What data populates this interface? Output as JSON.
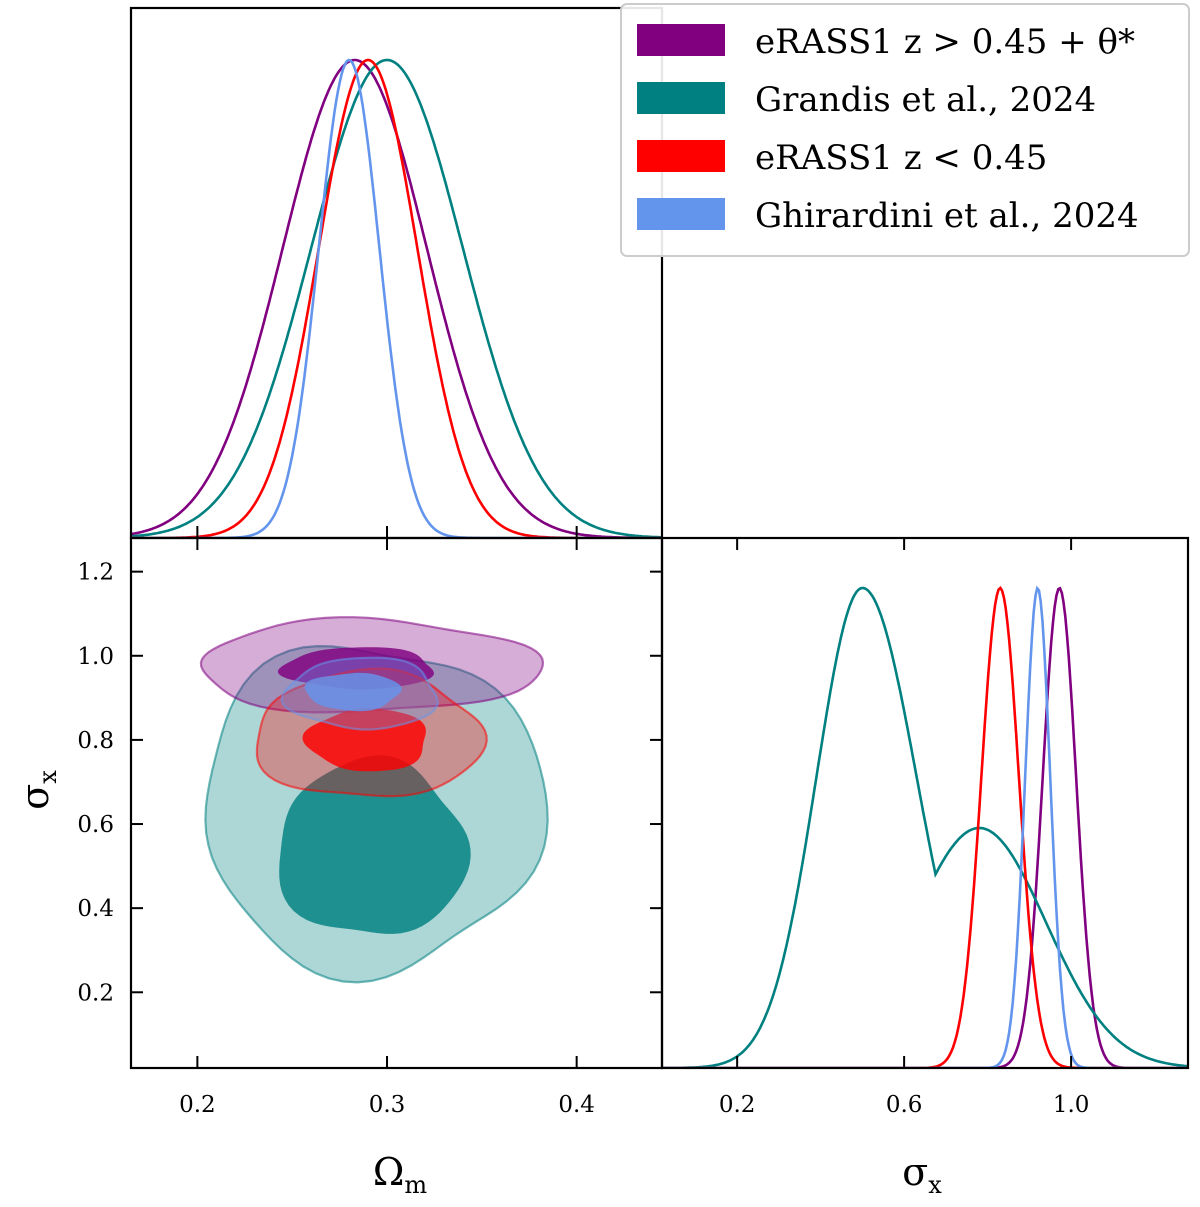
{
  "chart_data": {
    "type": "triangle-corner-plot",
    "parameters": [
      {
        "key": "omega_m",
        "label": "Ω",
        "label_sub": "m"
      },
      {
        "key": "sigma_x",
        "label": "σ",
        "label_sub": "x"
      }
    ],
    "series": [
      {
        "name": "eRASS1 z > 0.45 + θ*",
        "color": "#800080",
        "omega_m": {
          "mean": 0.283,
          "sd": 0.038
        },
        "sigma_x": {
          "mean": 0.972,
          "sd": 0.04
        },
        "contour_68": {
          "center": [
            0.285,
            0.97
          ],
          "half_width": [
            0.04,
            0.05
          ]
        },
        "contour_95": {
          "center": [
            0.29,
            0.975
          ],
          "half_width": [
            0.09,
            0.11
          ]
        }
      },
      {
        "name": "Grandis et al., 2024",
        "color": "#008080",
        "omega_m": {
          "mean": 0.3,
          "sd": 0.04
        },
        "sigma_x": {
          "mean": 0.5,
          "sd": 0.12
        },
        "contour_68": {
          "center": [
            0.292,
            0.54
          ],
          "half_width": [
            0.05,
            0.21
          ]
        },
        "contour_95": {
          "center": [
            0.292,
            0.64
          ],
          "half_width": [
            0.09,
            0.39
          ]
        }
      },
      {
        "name": "eRASS1 z < 0.45",
        "color": "#ff0000",
        "omega_m": {
          "mean": 0.29,
          "sd": 0.026
        },
        "sigma_x": {
          "mean": 0.83,
          "sd": 0.045
        },
        "contour_68": {
          "center": [
            0.29,
            0.8
          ],
          "half_width": [
            0.032,
            0.075
          ]
        },
        "contour_95": {
          "center": [
            0.29,
            0.81
          ],
          "half_width": [
            0.06,
            0.15
          ]
        }
      },
      {
        "name": "Ghirardini et al., 2024",
        "color": "#6495ed",
        "omega_m": {
          "mean": 0.28,
          "sd": 0.016
        },
        "sigma_x": {
          "mean": 0.92,
          "sd": 0.03
        },
        "contour_68": {
          "center": [
            0.282,
            0.915
          ],
          "half_width": [
            0.025,
            0.045
          ]
        },
        "contour_95": {
          "center": [
            0.287,
            0.91
          ],
          "half_width": [
            0.04,
            0.085
          ]
        }
      }
    ],
    "axes": {
      "omega_m": {
        "range": [
          0.165,
          0.445
        ],
        "ticks": [
          0.2,
          0.3,
          0.4
        ],
        "tick_labels": [
          "0.2",
          "0.3",
          "0.4"
        ]
      },
      "sigma_x_vertical": {
        "range": [
          0.02,
          1.28
        ],
        "ticks": [
          0.2,
          0.4,
          0.6,
          0.8,
          1.0,
          1.2
        ],
        "tick_labels": [
          "0.2",
          "0.4",
          "0.6",
          "0.8",
          "1.0",
          "1.2"
        ]
      },
      "sigma_x_horizontal": {
        "range": [
          0.02,
          1.28
        ],
        "ticks": [
          0.2,
          0.6,
          1.0
        ],
        "tick_labels": [
          "0.2",
          "0.6",
          "1.0"
        ]
      }
    },
    "legend_location": "top-right",
    "grid": false
  }
}
